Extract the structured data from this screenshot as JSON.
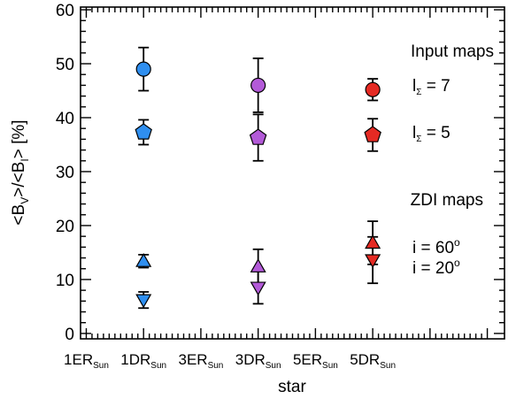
{
  "chart_data": {
    "type": "scatter",
    "xlabel": "star",
    "ylabel": {
      "parts": [
        {
          "t": "<B",
          "sub": false
        },
        {
          "t": "V",
          "sub": true
        },
        {
          "t": ">/<B",
          "sub": false
        },
        {
          "t": "I",
          "sub": true
        },
        {
          "t": "> [%]",
          "sub": false
        }
      ]
    },
    "xlim": [
      0.4,
      7.8
    ],
    "ylim": [
      -1,
      60.5
    ],
    "y_ticks": [
      0,
      10,
      20,
      30,
      40,
      50,
      60
    ],
    "x_ticks": [
      {
        "x": 0.5,
        "main": "1ER",
        "sub": "Sun"
      },
      {
        "x": 1.5,
        "main": "1DR",
        "sub": "Sun"
      },
      {
        "x": 2.5,
        "main": "3ER",
        "sub": "Sun"
      },
      {
        "x": 3.5,
        "main": "3DR",
        "sub": "Sun"
      },
      {
        "x": 4.5,
        "main": "5ER",
        "sub": "Sun"
      },
      {
        "x": 5.5,
        "main": "5DR",
        "sub": "Sun"
      }
    ],
    "grid": false,
    "colors": {
      "tick_label": "#1f4d32",
      "legend_heading": "#1f4d32",
      "star1": "#2f8ff0",
      "star3": "#b35ad8",
      "star5": "#e52a23",
      "edge": "#000000"
    },
    "series": [
      {
        "marker": "circle",
        "points": [
          {
            "x": 1.5,
            "y": 49.0,
            "err_lo": 4.0,
            "err_hi": 4.0,
            "color": "star1"
          },
          {
            "x": 3.5,
            "y": 46.0,
            "err_lo": 5.0,
            "err_hi": 5.0,
            "color": "star3"
          },
          {
            "x": 5.5,
            "y": 45.2,
            "err_lo": 2.0,
            "err_hi": 2.0,
            "color": "star5"
          }
        ]
      },
      {
        "marker": "pentagon",
        "points": [
          {
            "x": 1.5,
            "y": 37.3,
            "err_lo": 2.3,
            "err_hi": 2.3,
            "color": "star1"
          },
          {
            "x": 3.5,
            "y": 36.3,
            "err_lo": 4.3,
            "err_hi": 4.3,
            "color": "star3"
          },
          {
            "x": 5.5,
            "y": 36.8,
            "err_lo": 3.0,
            "err_hi": 3.0,
            "color": "star5"
          }
        ]
      },
      {
        "marker": "triangle-up",
        "points": [
          {
            "x": 1.5,
            "y": 13.4,
            "err_lo": 1.2,
            "err_hi": 1.2,
            "color": "star1"
          },
          {
            "x": 3.5,
            "y": 12.4,
            "err_lo": 3.2,
            "err_hi": 3.2,
            "color": "star3"
          },
          {
            "x": 5.5,
            "y": 16.8,
            "err_lo": 4.0,
            "err_hi": 4.0,
            "color": "star5"
          }
        ]
      },
      {
        "marker": "triangle-down",
        "points": [
          {
            "x": 1.5,
            "y": 6.2,
            "err_lo": 1.5,
            "err_hi": 1.5,
            "color": "star1"
          },
          {
            "x": 3.5,
            "y": 8.5,
            "err_lo": 3.0,
            "err_hi": 3.0,
            "color": "star3"
          },
          {
            "x": 5.5,
            "y": 13.6,
            "err_lo": 4.3,
            "err_hi": 4.3,
            "color": "star5"
          }
        ]
      }
    ],
    "legend": {
      "placement": "right",
      "input_heading": "Input maps",
      "input_entries": [
        {
          "marker": "circle",
          "color": "star5",
          "label_main": "l",
          "label_sub": "Σ",
          "label_rest": " = 7"
        },
        {
          "marker": "pentagon",
          "color": "star5",
          "label_main": "l",
          "label_sub": "Σ",
          "label_rest": " = 5"
        }
      ],
      "zdi_heading": "ZDI maps",
      "zdi_entries": [
        {
          "label": "i = 60",
          "sup": "o"
        },
        {
          "label": "i = 20",
          "sup": "o"
        }
      ]
    }
  }
}
